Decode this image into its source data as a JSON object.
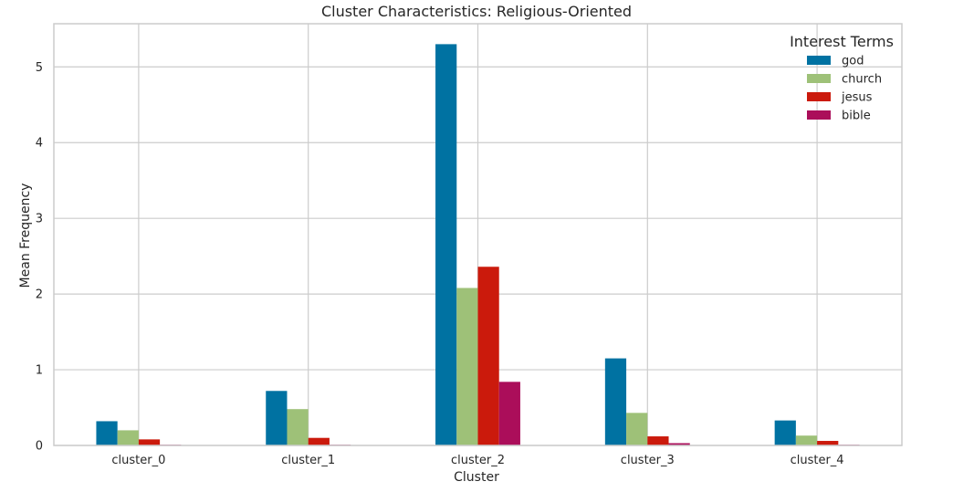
{
  "chart_data": {
    "type": "bar",
    "title": "Cluster Characteristics: Religious-Oriented",
    "xlabel": "Cluster",
    "ylabel": "Mean Frequency",
    "categories": [
      "cluster_0",
      "cluster_1",
      "cluster_2",
      "cluster_3",
      "cluster_4"
    ],
    "series": [
      {
        "name": "god",
        "color": "#0072a2",
        "values": [
          0.32,
          0.72,
          5.3,
          1.15,
          0.33
        ]
      },
      {
        "name": "church",
        "color": "#9ec178",
        "values": [
          0.2,
          0.48,
          2.08,
          0.43,
          0.13
        ]
      },
      {
        "name": "jesus",
        "color": "#cb1a0c",
        "values": [
          0.08,
          0.1,
          2.36,
          0.12,
          0.06
        ]
      },
      {
        "name": "bible",
        "color": "#ab0e5a",
        "values": [
          0.01,
          0.01,
          0.84,
          0.03,
          0.01
        ]
      }
    ],
    "ylim": [
      0,
      5.57
    ],
    "yticks": [
      "0",
      "1",
      "2",
      "3",
      "4",
      "5"
    ],
    "grid": true,
    "legend_title": "Interest Terms",
    "legend_position": "top-right"
  }
}
